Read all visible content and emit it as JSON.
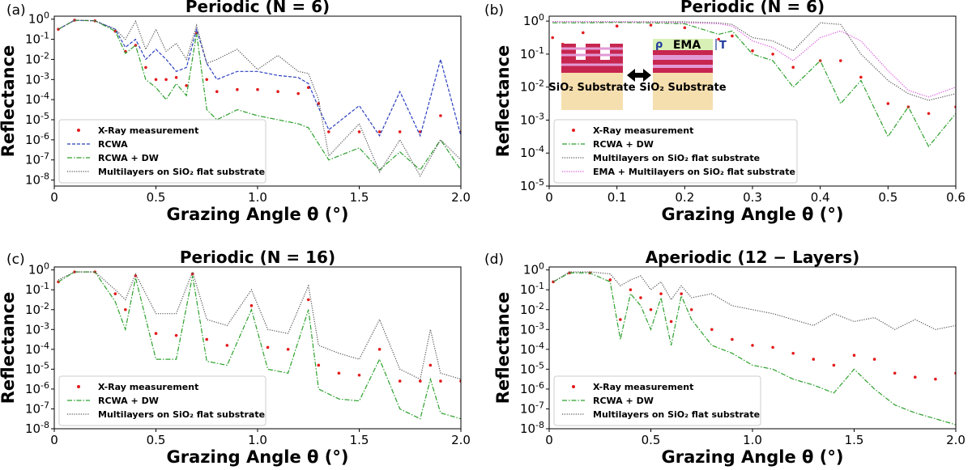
{
  "chart_data": [
    {
      "type": "line",
      "panel_label": "(a)",
      "title": "Periodic (N = 6)",
      "xlabel": "Grazing Angle θ (°)",
      "ylabel": "Reflectance",
      "xlim": [
        0,
        2.0
      ],
      "ylim_log10": [
        -8.3,
        0.15
      ],
      "xticks": [
        0,
        0.5,
        1.0,
        1.5,
        2.0
      ],
      "xtick_labels": [
        "0",
        "0.5",
        "1.0",
        "1.5",
        "2.0"
      ],
      "yticks_exp": [
        0,
        -1,
        -2,
        -3,
        -4,
        -5,
        -6,
        -7,
        -8
      ],
      "legend_position": "lower-left",
      "legend": [
        "X-Ray measurement",
        "RCWA",
        "RCWA + DW",
        "Multilayers on SiO₂ flat substrate"
      ],
      "series": [
        {
          "name": "X-Ray measurement",
          "style": "dots",
          "color": "#e31a1c",
          "x": [
            0.02,
            0.1,
            0.2,
            0.3,
            0.35,
            0.4,
            0.45,
            0.5,
            0.55,
            0.6,
            0.65,
            0.7,
            0.75,
            0.8,
            0.9,
            1.0,
            1.1,
            1.2,
            1.25,
            1.3,
            1.35,
            1.5,
            1.6,
            1.7,
            1.8,
            1.9,
            2.0
          ],
          "log10_y": [
            -0.5,
            -0.05,
            -0.08,
            -0.6,
            -1.6,
            -1.3,
            -2.4,
            -3.0,
            -3.0,
            -2.9,
            -3.3,
            -0.7,
            -3.0,
            -3.6,
            -3.5,
            -3.5,
            -3.6,
            -3.7,
            -3.4,
            -4.2,
            -5.6,
            -5.6,
            -5.6,
            -5.6,
            -5.6,
            -4.8,
            -5.6
          ]
        },
        {
          "name": "RCWA",
          "style": "dashed",
          "color": "#2b3fbf",
          "x": [
            0.02,
            0.1,
            0.2,
            0.3,
            0.35,
            0.4,
            0.45,
            0.5,
            0.55,
            0.6,
            0.65,
            0.7,
            0.75,
            0.8,
            0.9,
            1.0,
            1.1,
            1.2,
            1.25,
            1.3,
            1.35,
            1.5,
            1.6,
            1.7,
            1.8,
            1.9,
            2.0
          ],
          "log10_y": [
            -0.5,
            -0.05,
            -0.08,
            -0.5,
            -1.4,
            -1.0,
            -2.0,
            -1.5,
            -2.0,
            -2.6,
            -2.4,
            -0.5,
            -2.2,
            -3.0,
            -2.6,
            -2.6,
            -2.8,
            -2.9,
            -3.2,
            -4.4,
            -5.5,
            -4.3,
            -5.8,
            -3.6,
            -5.8,
            -2.0,
            -5.8
          ]
        },
        {
          "name": "RCWA + DW",
          "style": "dashdot",
          "color": "#2ca02c",
          "x": [
            0.02,
            0.1,
            0.2,
            0.3,
            0.35,
            0.4,
            0.45,
            0.5,
            0.55,
            0.6,
            0.65,
            0.7,
            0.75,
            0.8,
            0.9,
            1.0,
            1.1,
            1.2,
            1.25,
            1.3,
            1.35,
            1.5,
            1.6,
            1.7,
            1.8,
            1.9,
            2.0
          ],
          "log10_y": [
            -0.5,
            -0.05,
            -0.08,
            -0.6,
            -1.7,
            -1.3,
            -3.0,
            -3.4,
            -4.0,
            -3.2,
            -3.8,
            -0.7,
            -4.5,
            -5.0,
            -4.5,
            -4.8,
            -5.0,
            -5.2,
            -5.4,
            -6.2,
            -7.0,
            -6.4,
            -7.5,
            -6.6,
            -7.5,
            -6.0,
            -7.5
          ]
        },
        {
          "name": "Multilayers on SiO₂ flat substrate",
          "style": "dotted",
          "color": "#555555",
          "x": [
            0.02,
            0.1,
            0.2,
            0.3,
            0.35,
            0.4,
            0.45,
            0.5,
            0.55,
            0.6,
            0.65,
            0.7,
            0.75,
            0.8,
            0.9,
            1.0,
            1.1,
            1.2,
            1.25,
            1.3,
            1.35,
            1.5,
            1.6,
            1.7,
            1.8,
            1.9,
            2.0
          ],
          "log10_y": [
            -0.5,
            -0.05,
            -0.08,
            -0.5,
            -1.0,
            -0.1,
            -1.5,
            -0.5,
            -1.6,
            -1.2,
            -2.0,
            -0.3,
            -2.2,
            -2.0,
            -1.5,
            -2.5,
            -1.8,
            -2.6,
            -2.7,
            -4.0,
            -6.8,
            -5.2,
            -7.6,
            -6.0,
            -7.8,
            -6.0,
            -7.0
          ]
        }
      ]
    },
    {
      "type": "line",
      "panel_label": "(b)",
      "title": "Periodic (N = 6)",
      "xlabel": "Grazing Angle θ (°)",
      "ylabel": "Reflectance",
      "xlim": [
        0,
        0.6
      ],
      "ylim_log10": [
        -5.0,
        0.15
      ],
      "xticks": [
        0,
        0.1,
        0.2,
        0.3,
        0.4,
        0.5,
        0.6
      ],
      "xtick_labels": [
        "0",
        "0.1",
        "0.2",
        "0.3",
        "0.4",
        "0.5",
        "0.6"
      ],
      "yticks_exp": [
        0,
        -1,
        -2,
        -3,
        -4,
        -5
      ],
      "legend_position": "lower-left",
      "legend": [
        "X-Ray measurement",
        "RCWA + DW",
        "Multilayers on SiO₂ flat substrate",
        "EMA + Multilayers on SiO₂ flat substrate"
      ],
      "inset": {
        "left_label": "SiO₂ Substrate",
        "right_label": "SiO₂ Substrate",
        "rho_label": "ρ",
        "ema_label": "EMA",
        "t_label": "T"
      },
      "series": [
        {
          "name": "X-Ray measurement",
          "style": "dots",
          "color": "#e31a1c",
          "x": [
            0.005,
            0.02,
            0.05,
            0.1,
            0.15,
            0.2,
            0.25,
            0.27,
            0.3,
            0.33,
            0.36,
            0.4,
            0.43,
            0.46,
            0.5,
            0.53,
            0.56,
            0.6
          ],
          "log10_y": [
            -0.5,
            -0.7,
            -0.35,
            -0.15,
            -0.12,
            -0.2,
            -0.55,
            -0.45,
            -0.9,
            -1.0,
            -1.4,
            -1.2,
            -1.2,
            -1.7,
            -2.5,
            -2.6,
            -2.8,
            -2.6
          ]
        },
        {
          "name": "RCWA + DW",
          "style": "dashdot",
          "color": "#2ca02c",
          "x": [
            0.005,
            0.02,
            0.05,
            0.1,
            0.15,
            0.2,
            0.25,
            0.27,
            0.3,
            0.33,
            0.36,
            0.4,
            0.43,
            0.46,
            0.5,
            0.53,
            0.56,
            0.6
          ],
          "log10_y": [
            -0.05,
            -0.05,
            -0.05,
            -0.04,
            -0.05,
            -0.08,
            -0.4,
            -0.3,
            -1.0,
            -1.2,
            -2.0,
            -1.2,
            -2.5,
            -1.8,
            -3.5,
            -2.6,
            -3.8,
            -2.8
          ]
        },
        {
          "name": "Multilayers on SiO₂ flat substrate",
          "style": "dotted",
          "color": "#555555",
          "x": [
            0.005,
            0.02,
            0.05,
            0.1,
            0.15,
            0.2,
            0.25,
            0.27,
            0.3,
            0.33,
            0.36,
            0.4,
            0.43,
            0.46,
            0.5,
            0.53,
            0.56,
            0.6
          ],
          "log10_y": [
            -0.02,
            -0.02,
            -0.02,
            -0.02,
            -0.02,
            -0.02,
            -0.05,
            -0.1,
            -0.5,
            -0.6,
            -0.9,
            -0.05,
            -0.1,
            -1.0,
            -1.8,
            -2.2,
            -2.4,
            -2.2
          ]
        },
        {
          "name": "EMA + Multilayers on SiO₂ flat substrate",
          "style": "dotted",
          "color": "#d94fd9",
          "x": [
            0.005,
            0.02,
            0.05,
            0.1,
            0.15,
            0.2,
            0.25,
            0.27,
            0.3,
            0.33,
            0.36,
            0.4,
            0.43,
            0.46,
            0.5,
            0.53,
            0.56,
            0.6
          ],
          "log10_y": [
            -0.02,
            -0.02,
            -0.02,
            -0.02,
            -0.03,
            -0.05,
            -0.08,
            -0.15,
            -0.6,
            -0.8,
            -1.2,
            -0.5,
            -0.3,
            -0.6,
            -1.5,
            -2.1,
            -2.3,
            -2.0
          ]
        }
      ]
    },
    {
      "type": "line",
      "panel_label": "(c)",
      "title": "Periodic (N = 16)",
      "xlabel": "Grazing Angle θ (°)",
      "ylabel": "Reflectance",
      "xlim": [
        0,
        2.0
      ],
      "ylim_log10": [
        -8.0,
        0.15
      ],
      "xticks": [
        0,
        0.5,
        1.0,
        1.5,
        2.0
      ],
      "xtick_labels": [
        "0",
        "0.5",
        "1.0",
        "1.5",
        "2.0"
      ],
      "yticks_exp": [
        0,
        -1,
        -2,
        -3,
        -4,
        -5,
        -6,
        -7,
        -8
      ],
      "legend_position": "lower-left",
      "legend": [
        "X-Ray measurement",
        "RCWA + DW",
        "Multilayers on SiO₂ flat substrate"
      ],
      "series": [
        {
          "name": "X-Ray measurement",
          "style": "dots",
          "color": "#e31a1c",
          "x": [
            0.02,
            0.1,
            0.2,
            0.3,
            0.35,
            0.4,
            0.5,
            0.6,
            0.68,
            0.75,
            0.85,
            0.97,
            1.05,
            1.15,
            1.25,
            1.3,
            1.4,
            1.5,
            1.6,
            1.7,
            1.8,
            1.85,
            1.9,
            2.0
          ],
          "log10_y": [
            -0.6,
            -0.1,
            -0.1,
            -1.2,
            -2.0,
            -0.3,
            -3.2,
            -3.3,
            -0.2,
            -3.5,
            -3.8,
            -1.8,
            -3.9,
            -4.0,
            -1.5,
            -4.8,
            -5.2,
            -5.3,
            -4.0,
            -5.6,
            -5.6,
            -4.8,
            -5.6,
            -5.6
          ]
        },
        {
          "name": "RCWA + DW",
          "style": "dashdot",
          "color": "#2ca02c",
          "x": [
            0.02,
            0.1,
            0.2,
            0.3,
            0.35,
            0.4,
            0.5,
            0.6,
            0.68,
            0.75,
            0.85,
            0.97,
            1.05,
            1.15,
            1.25,
            1.3,
            1.4,
            1.5,
            1.6,
            1.7,
            1.8,
            1.85,
            1.9,
            2.0
          ],
          "log10_y": [
            -0.6,
            -0.1,
            -0.1,
            -1.6,
            -3.0,
            -0.4,
            -4.5,
            -4.5,
            -0.3,
            -4.6,
            -4.8,
            -2.0,
            -5.0,
            -5.2,
            -2.0,
            -6.0,
            -6.5,
            -6.6,
            -4.5,
            -7.0,
            -7.5,
            -5.5,
            -7.2,
            -7.5
          ]
        },
        {
          "name": "Multilayers on SiO₂ flat substrate",
          "style": "dotted",
          "color": "#555555",
          "x": [
            0.02,
            0.1,
            0.2,
            0.3,
            0.35,
            0.4,
            0.5,
            0.6,
            0.68,
            0.75,
            0.85,
            0.97,
            1.05,
            1.15,
            1.25,
            1.3,
            1.4,
            1.5,
            1.6,
            1.7,
            1.8,
            1.85,
            1.9,
            2.0
          ],
          "log10_y": [
            -0.5,
            -0.1,
            -0.1,
            -1.0,
            -1.5,
            -0.2,
            -2.2,
            -2.2,
            -0.1,
            -2.5,
            -2.8,
            -1.0,
            -3.0,
            -3.2,
            -0.8,
            -3.8,
            -4.2,
            -4.5,
            -2.5,
            -5.0,
            -5.5,
            -3.0,
            -5.2,
            -5.5
          ]
        }
      ]
    },
    {
      "type": "line",
      "panel_label": "(d)",
      "title": "Aperiodic (12 − Layers)",
      "xlabel": "Grazing Angle θ (°)",
      "ylabel": "Reflectance",
      "xlim": [
        0,
        2.0
      ],
      "ylim_log10": [
        -8.0,
        0.15
      ],
      "xticks": [
        0,
        0.5,
        1.0,
        1.5,
        2.0
      ],
      "xtick_labels": [
        "0",
        "0.5",
        "1.0",
        "1.5",
        "2.0"
      ],
      "yticks_exp": [
        0,
        -1,
        -2,
        -3,
        -4,
        -5,
        -6,
        -7,
        -8
      ],
      "legend_position": "lower-left",
      "legend": [
        "X-Ray measurement",
        "RCWA + DW",
        "Multilayers on SiO₂ flat substrate"
      ],
      "series": [
        {
          "name": "X-Ray measurement",
          "style": "dots",
          "color": "#e31a1c",
          "x": [
            0.02,
            0.1,
            0.2,
            0.3,
            0.35,
            0.4,
            0.45,
            0.5,
            0.55,
            0.6,
            0.65,
            0.7,
            0.8,
            0.9,
            1.0,
            1.1,
            1.2,
            1.3,
            1.4,
            1.5,
            1.6,
            1.7,
            1.8,
            1.9,
            2.0
          ],
          "log10_y": [
            -0.6,
            -0.15,
            -0.15,
            -0.5,
            -2.5,
            -1.0,
            -1.4,
            -2.0,
            -1.2,
            -2.6,
            -1.2,
            -2.0,
            -3.0,
            -3.5,
            -3.8,
            -3.9,
            -4.2,
            -4.5,
            -4.8,
            -4.3,
            -4.5,
            -5.2,
            -5.4,
            -5.5,
            -5.2
          ]
        },
        {
          "name": "RCWA + DW",
          "style": "dashdot",
          "color": "#2ca02c",
          "x": [
            0.02,
            0.1,
            0.2,
            0.3,
            0.35,
            0.4,
            0.45,
            0.5,
            0.55,
            0.6,
            0.65,
            0.7,
            0.8,
            0.9,
            1.0,
            1.1,
            1.2,
            1.3,
            1.4,
            1.5,
            1.6,
            1.7,
            1.8,
            1.9,
            2.0
          ],
          "log10_y": [
            -0.6,
            -0.15,
            -0.15,
            -0.6,
            -3.5,
            -1.2,
            -1.8,
            -3.0,
            -1.4,
            -3.8,
            -1.3,
            -2.5,
            -3.8,
            -4.2,
            -4.8,
            -5.0,
            -5.5,
            -5.8,
            -6.2,
            -5.0,
            -6.0,
            -6.8,
            -7.2,
            -7.5,
            -7.8
          ]
        },
        {
          "name": "Multilayers on SiO₂ flat substrate",
          "style": "dotted",
          "color": "#555555",
          "x": [
            0.02,
            0.1,
            0.2,
            0.3,
            0.35,
            0.4,
            0.45,
            0.5,
            0.55,
            0.6,
            0.65,
            0.7,
            0.8,
            0.9,
            1.0,
            1.1,
            1.2,
            1.3,
            1.4,
            1.5,
            1.6,
            1.7,
            1.8,
            1.9,
            2.0
          ],
          "log10_y": [
            -0.6,
            -0.1,
            -0.1,
            -0.2,
            -0.8,
            -0.5,
            -0.3,
            -1.0,
            -0.6,
            -1.5,
            -0.8,
            -1.4,
            -1.2,
            -1.8,
            -2.0,
            -2.2,
            -2.5,
            -2.8,
            -2.2,
            -2.6,
            -2.4,
            -3.0,
            -2.5,
            -3.0,
            -2.8
          ]
        }
      ]
    }
  ]
}
